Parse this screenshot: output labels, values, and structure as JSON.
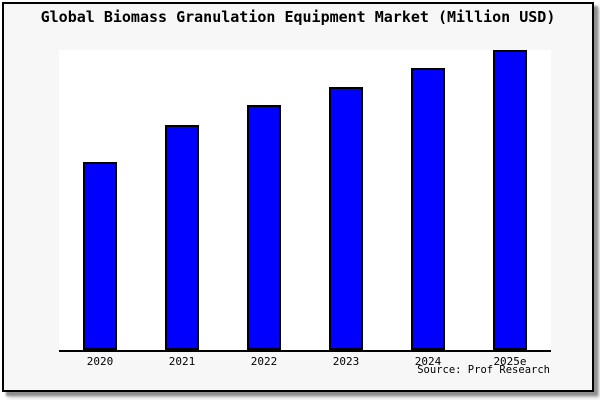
{
  "header": {
    "title": "Global Biomass Granulation Equipment Market (Million USD)"
  },
  "footer": {
    "source_label": "Source: Prof Research"
  },
  "colors": {
    "bar_fill": "#0000ff",
    "bar_border": "#000000",
    "panel_background": "#f7f7f7",
    "plot_background": "#ffffff",
    "axis": "#000000",
    "panel_border": "#000000"
  },
  "chart_data": {
    "type": "bar",
    "title": "Global Biomass Granulation Equipment Market (Million USD)",
    "categories": [
      "2020",
      "2021",
      "2022",
      "2023",
      "2024",
      "2025e"
    ],
    "values": [
      62.8,
      75.1,
      81.6,
      87.8,
      94.0,
      100.0
    ],
    "value_note": "Relative bar heights as % of the 2025e bar; chart shows no y-axis scale or numeric data labels",
    "xlabel": "",
    "ylabel": "",
    "ylim": [
      0,
      100
    ],
    "yaxis_visible": false,
    "xaxis_visible": true,
    "grid": false,
    "legend": false,
    "annotation": "Source: Prof Research"
  }
}
